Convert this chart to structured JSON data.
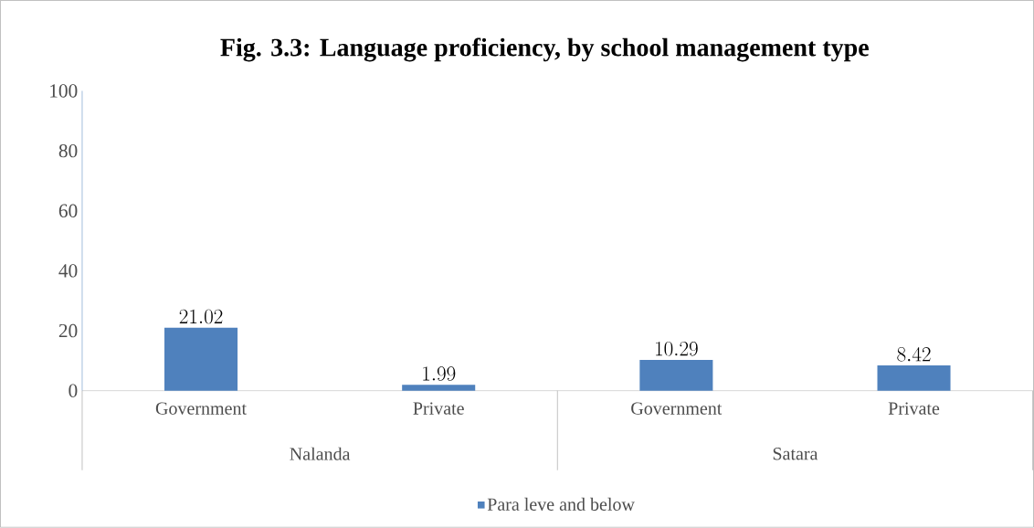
{
  "chart_data": {
    "type": "bar",
    "title": "Fig. 3.3: Language proficiency, by school management type",
    "categories": [
      "Government",
      "Private",
      "Government",
      "Private"
    ],
    "series": [
      {
        "name": "Para leve and below",
        "color": "#4f81bd",
        "values": [
          21.02,
          1.99,
          10.29,
          8.42
        ]
      }
    ],
    "annotations": [
      "Nalanda",
      "Satara"
    ],
    "ylim": [
      0,
      100
    ],
    "yticks": [
      0,
      20,
      40,
      60,
      80,
      100
    ],
    "data_labels": true,
    "grid": false,
    "legend": "bottom"
  }
}
